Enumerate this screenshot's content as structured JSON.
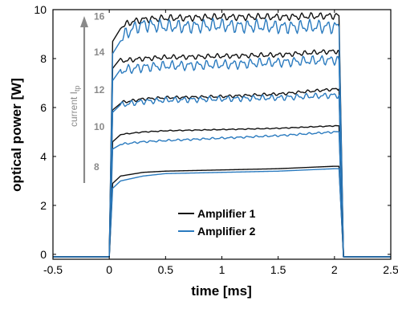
{
  "chart_data": {
    "type": "line",
    "xlabel": "time [ms]",
    "ylabel": "optical power [W]",
    "xlim": [
      -0.5,
      2.5
    ],
    "ylim": [
      -0.2,
      10
    ],
    "xticks": [
      -0.5,
      0,
      0.5,
      1,
      1.5,
      2,
      2.5
    ],
    "xtick_labels": [
      "-0.5",
      "0",
      "0.5",
      "1",
      "1.5",
      "2",
      "2.5"
    ],
    "yticks": [
      0,
      2,
      4,
      6,
      8,
      10
    ],
    "ytick_labels": [
      "0",
      "2",
      "4",
      "6",
      "8",
      "10"
    ],
    "grid": false,
    "legend": "lower-center",
    "arrow_label": "current I",
    "arrow_label_sub": "tp",
    "current_labels": [
      "8",
      "10",
      "12",
      "14",
      "16"
    ],
    "colors": {
      "Amplifier 1": "#111111",
      "Amplifier 2": "#2b7bbf",
      "annotation": "#8a8a8a"
    },
    "pulse": {
      "on": 0.0,
      "off": 2.04
    },
    "series": [
      {
        "name": "Amplifier 1",
        "current": "8",
        "x": [
          -0.5,
          0.0,
          0.03,
          0.1,
          0.3,
          0.5,
          1.0,
          1.5,
          2.0,
          2.04,
          2.08,
          2.5
        ],
        "y": [
          -0.1,
          -0.1,
          2.9,
          3.2,
          3.35,
          3.4,
          3.45,
          3.5,
          3.6,
          3.6,
          -0.1,
          -0.1
        ]
      },
      {
        "name": "Amplifier 2",
        "current": "8",
        "x": [
          -0.5,
          0.0,
          0.03,
          0.1,
          0.3,
          0.5,
          1.0,
          1.5,
          2.0,
          2.04,
          2.08,
          2.5
        ],
        "y": [
          -0.1,
          -0.1,
          2.7,
          3.0,
          3.2,
          3.3,
          3.35,
          3.4,
          3.5,
          3.5,
          -0.1,
          -0.1
        ]
      },
      {
        "name": "Amplifier 1",
        "current": "10",
        "x": [
          -0.5,
          0.0,
          0.03,
          0.1,
          0.3,
          0.5,
          1.0,
          1.5,
          2.0,
          2.04,
          2.08,
          2.5
        ],
        "y": [
          -0.1,
          -0.1,
          4.6,
          4.9,
          5.0,
          5.05,
          5.1,
          5.15,
          5.25,
          5.25,
          -0.1,
          -0.1
        ]
      },
      {
        "name": "Amplifier 2",
        "current": "10",
        "x": [
          -0.5,
          0.0,
          0.03,
          0.1,
          0.3,
          0.5,
          1.0,
          1.5,
          2.0,
          2.04,
          2.08,
          2.5
        ],
        "y": [
          -0.1,
          -0.1,
          4.3,
          4.5,
          4.6,
          4.65,
          4.75,
          4.85,
          5.0,
          5.0,
          -0.1,
          -0.1
        ]
      },
      {
        "name": "Amplifier 1",
        "current": "12",
        "x": [
          -0.5,
          0.0,
          0.03,
          0.1,
          0.3,
          0.5,
          1.0,
          1.5,
          2.0,
          2.04,
          2.08,
          2.5
        ],
        "y": [
          -0.1,
          -0.1,
          5.9,
          6.2,
          6.35,
          6.4,
          6.45,
          6.55,
          6.75,
          6.75,
          -0.1,
          -0.1
        ]
      },
      {
        "name": "Amplifier 2",
        "current": "12",
        "x": [
          -0.5,
          0.0,
          0.03,
          0.1,
          0.3,
          0.5,
          1.0,
          1.5,
          2.0,
          2.04,
          2.08,
          2.5
        ],
        "y": [
          -0.1,
          -0.1,
          5.8,
          6.1,
          6.25,
          6.3,
          6.35,
          6.4,
          6.5,
          6.5,
          -0.1,
          -0.1
        ]
      },
      {
        "name": "Amplifier 1",
        "current": "14",
        "x": [
          -0.5,
          0.0,
          0.03,
          0.1,
          0.3,
          0.5,
          1.0,
          1.5,
          2.0,
          2.04,
          2.08,
          2.5
        ],
        "y": [
          -0.1,
          -0.1,
          7.6,
          7.9,
          8.0,
          8.05,
          8.1,
          8.15,
          8.3,
          8.3,
          -0.1,
          -0.1
        ]
      },
      {
        "name": "Amplifier 2",
        "current": "14",
        "x": [
          -0.5,
          0.0,
          0.03,
          0.1,
          0.3,
          0.5,
          1.0,
          1.5,
          2.0,
          2.04,
          2.08,
          2.5
        ],
        "y": [
          -0.1,
          -0.1,
          7.1,
          7.5,
          7.65,
          7.7,
          7.75,
          7.85,
          7.95,
          7.95,
          -0.1,
          -0.1
        ]
      },
      {
        "name": "Amplifier 1",
        "current": "16",
        "x": [
          -0.5,
          0.0,
          0.03,
          0.1,
          0.2,
          0.3,
          0.5,
          1.0,
          1.5,
          2.0,
          2.04,
          2.08,
          2.5
        ],
        "y": [
          -0.1,
          -0.1,
          8.7,
          9.3,
          9.5,
          9.6,
          9.65,
          9.7,
          9.7,
          9.75,
          9.75,
          -0.1,
          -0.1
        ]
      },
      {
        "name": "Amplifier 2",
        "current": "16",
        "x": [
          -0.5,
          0.0,
          0.03,
          0.1,
          0.2,
          0.3,
          0.5,
          1.0,
          1.5,
          2.0,
          2.04,
          2.08,
          2.5
        ],
        "y": [
          -0.1,
          -0.1,
          8.2,
          8.8,
          9.2,
          9.4,
          9.3,
          9.35,
          9.3,
          9.3,
          9.3,
          -0.1,
          -0.1
        ]
      }
    ]
  }
}
